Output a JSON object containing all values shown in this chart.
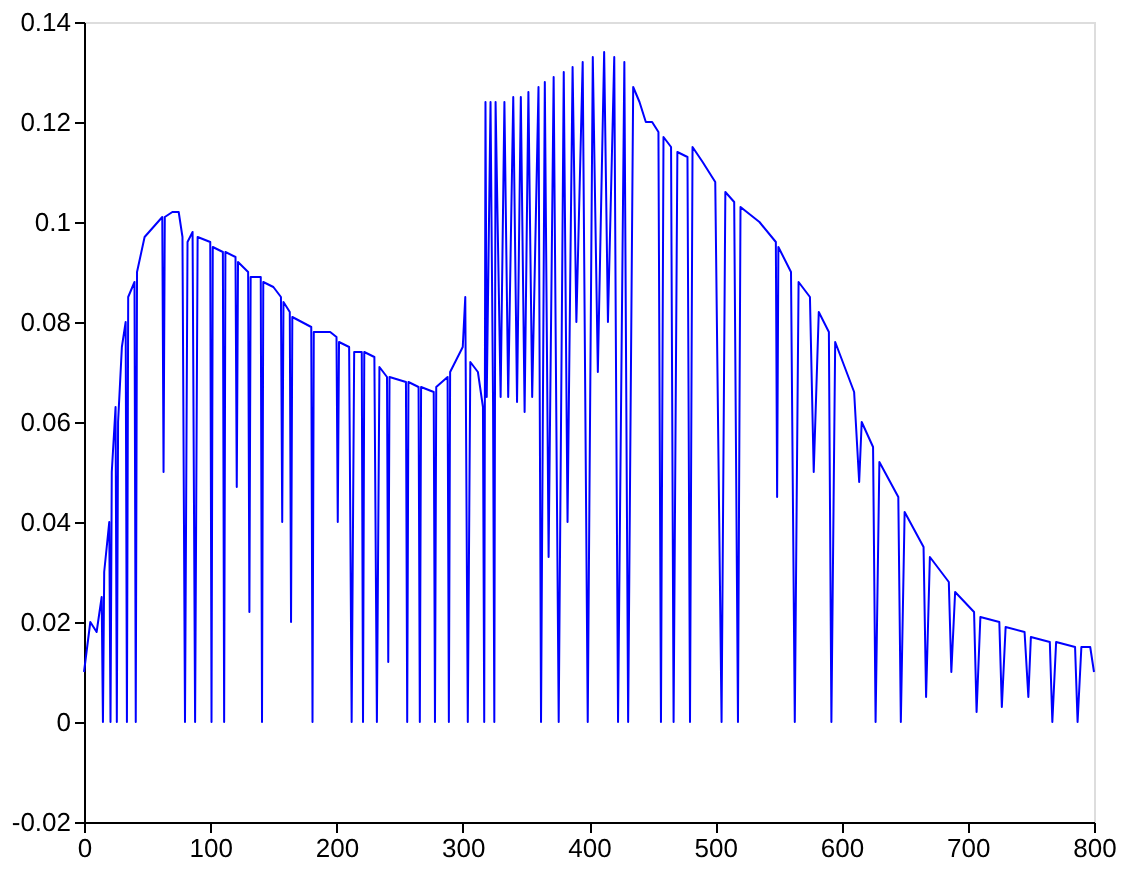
{
  "chart_data": {
    "type": "line",
    "xlim": [
      0,
      800
    ],
    "xticks": [
      0,
      100,
      200,
      300,
      400,
      500,
      600,
      700,
      800
    ],
    "ylim": [
      -0.02,
      0.14
    ],
    "yticks": [
      -0.02,
      0,
      0.02,
      0.04,
      0.06,
      0.08,
      0.1,
      0.12,
      0.14
    ],
    "grid": false,
    "legend": false,
    "series": [
      {
        "color": "#0000ff",
        "x": [
          0,
          5,
          10,
          14,
          15,
          16,
          20,
          21,
          22,
          25,
          26,
          27,
          30,
          33,
          34,
          35,
          40,
          41,
          42,
          48,
          55,
          62,
          63,
          64,
          70,
          75,
          78,
          80,
          82,
          86,
          88,
          90,
          100,
          101,
          102,
          110,
          111,
          112,
          120,
          121,
          122,
          130,
          131,
          132,
          140,
          141,
          142,
          150,
          156,
          157,
          158,
          163,
          164,
          165,
          180,
          181,
          182,
          195,
          200,
          201,
          202,
          210,
          212,
          214,
          220,
          221,
          222,
          230,
          232,
          234,
          240,
          241,
          242,
          255,
          256,
          257,
          265,
          266,
          267,
          277,
          278,
          279,
          288,
          289,
          290,
          300,
          302,
          304,
          306,
          312,
          316,
          317,
          318,
          319,
          322,
          324,
          325,
          326,
          330,
          333,
          336,
          340,
          343,
          346,
          349,
          352,
          355,
          360,
          362,
          365,
          368,
          372,
          376,
          380,
          383,
          387,
          390,
          395,
          399,
          403,
          407,
          412,
          415,
          420,
          423,
          428,
          431,
          435,
          440,
          445,
          450,
          455,
          457,
          459,
          465,
          467,
          470,
          478,
          480,
          482,
          490,
          500,
          505,
          508,
          515,
          518,
          520,
          535,
          548,
          549,
          550,
          560,
          563,
          566,
          575,
          578,
          582,
          590,
          592,
          595,
          610,
          614,
          616,
          625,
          627,
          630,
          645,
          647,
          650,
          665,
          667,
          670,
          685,
          687,
          690,
          705,
          707,
          710,
          725,
          727,
          730,
          745,
          748,
          750,
          765,
          767,
          770,
          785,
          787,
          790,
          797,
          800
        ],
        "values": [
          0.01,
          0.02,
          0.018,
          0.025,
          0,
          0.03,
          0.04,
          0,
          0.05,
          0.063,
          0,
          0.06,
          0.075,
          0.08,
          0,
          0.085,
          0.088,
          0,
          0.09,
          0.097,
          0.099,
          0.101,
          0.05,
          0.101,
          0.102,
          0.102,
          0.097,
          0,
          0.096,
          0.098,
          0,
          0.097,
          0.096,
          0,
          0.095,
          0.094,
          0,
          0.094,
          0.093,
          0.047,
          0.092,
          0.09,
          0.022,
          0.089,
          0.089,
          0,
          0.088,
          0.087,
          0.085,
          0.04,
          0.084,
          0.082,
          0.02,
          0.081,
          0.079,
          0,
          0.078,
          0.078,
          0.077,
          0.04,
          0.076,
          0.075,
          0,
          0.074,
          0.074,
          0,
          0.074,
          0.073,
          0,
          0.071,
          0.069,
          0.012,
          0.069,
          0.068,
          0,
          0.068,
          0.067,
          0,
          0.067,
          0.066,
          0,
          0.067,
          0.069,
          0,
          0.07,
          0.075,
          0.085,
          0,
          0.072,
          0.07,
          0.063,
          0,
          0.124,
          0.065,
          0.124,
          0.064,
          0,
          0.124,
          0.065,
          0.124,
          0.065,
          0.125,
          0.064,
          0.125,
          0.062,
          0.126,
          0.065,
          0.127,
          0,
          0.128,
          0.033,
          0.129,
          0,
          0.13,
          0.04,
          0.131,
          0.08,
          0.132,
          0,
          0.133,
          0.07,
          0.134,
          0.08,
          0.133,
          0,
          0.132,
          0,
          0.127,
          0.124,
          0.12,
          0.12,
          0.118,
          0,
          0.117,
          0.115,
          0,
          0.114,
          0.113,
          0,
          0.115,
          0.112,
          0.108,
          0,
          0.106,
          0.104,
          0,
          0.103,
          0.1,
          0.096,
          0.045,
          0.095,
          0.09,
          0,
          0.088,
          0.085,
          0.05,
          0.082,
          0.078,
          0,
          0.076,
          0.066,
          0.048,
          0.06,
          0.055,
          0,
          0.052,
          0.045,
          0,
          0.042,
          0.035,
          0.005,
          0.033,
          0.028,
          0.01,
          0.026,
          0.022,
          0.002,
          0.021,
          0.02,
          0.003,
          0.019,
          0.018,
          0.005,
          0.017,
          0.016,
          0,
          0.016,
          0.015,
          0,
          0.015,
          0.015,
          0.01
        ]
      }
    ]
  }
}
